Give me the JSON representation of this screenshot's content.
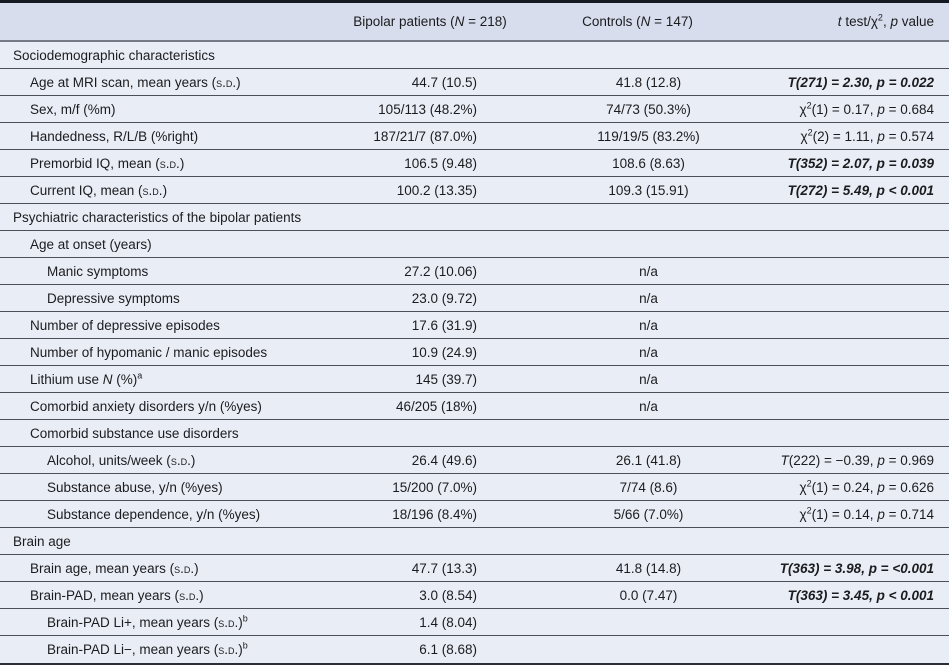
{
  "table": {
    "header": {
      "label": [],
      "bipolar": [
        {
          "t": "Bipolar patients ("
        },
        {
          "t": "N",
          "s": "i"
        },
        {
          "t": " = 218)"
        }
      ],
      "controls": [
        {
          "t": "Controls ("
        },
        {
          "t": "N",
          "s": "i"
        },
        {
          "t": " = 147)"
        }
      ],
      "stats": [
        {
          "t": "t",
          "s": "i"
        },
        {
          "t": " test/χ"
        },
        {
          "t": "2",
          "s": "sup"
        },
        {
          "t": ", "
        },
        {
          "t": "p",
          "s": "i"
        },
        {
          "t": " value"
        }
      ]
    },
    "rows": [
      {
        "ind": 0,
        "label": [
          {
            "t": "Sociodemographic characteristics"
          }
        ],
        "bipolar": "",
        "controls": "",
        "stats": [],
        "stats_bold": false
      },
      {
        "ind": 1,
        "label": [
          {
            "t": "Age at MRI scan, mean years ("
          },
          {
            "t": "s.d.",
            "s": "sc"
          },
          {
            "t": ")"
          }
        ],
        "bipolar": "44.7 (10.5)",
        "controls": "41.8 (12.8)",
        "stats": [
          {
            "t": "T(271) = 2.30, p = 0.022"
          }
        ],
        "stats_bold": true
      },
      {
        "ind": 1,
        "label": [
          {
            "t": "Sex, m/f (%m)"
          }
        ],
        "bipolar": "105/113 (48.2%)",
        "controls": "74/73 (50.3%)",
        "stats": [
          {
            "t": "χ"
          },
          {
            "t": "2",
            "s": "sup"
          },
          {
            "t": "(1) = 0.17, "
          },
          {
            "t": "p",
            "s": "i"
          },
          {
            "t": " = 0.684"
          }
        ],
        "stats_bold": false
      },
      {
        "ind": 1,
        "label": [
          {
            "t": "Handedness, R/L/B (%right)"
          }
        ],
        "bipolar": "187/21/7 (87.0%)",
        "controls": "119/19/5 (83.2%)",
        "stats": [
          {
            "t": "χ"
          },
          {
            "t": "2",
            "s": "sup"
          },
          {
            "t": "(2) = 1.11, "
          },
          {
            "t": "p",
            "s": "i"
          },
          {
            "t": " = 0.574"
          }
        ],
        "stats_bold": false
      },
      {
        "ind": 1,
        "label": [
          {
            "t": "Premorbid IQ, mean ("
          },
          {
            "t": "s.d.",
            "s": "sc"
          },
          {
            "t": ")"
          }
        ],
        "bipolar": "106.5 (9.48)",
        "controls": "108.6 (8.63)",
        "stats": [
          {
            "t": "T(352) = 2.07, p = 0.039"
          }
        ],
        "stats_bold": true
      },
      {
        "ind": 1,
        "label": [
          {
            "t": "Current IQ, mean ("
          },
          {
            "t": "s.d.",
            "s": "sc"
          },
          {
            "t": ")"
          }
        ],
        "bipolar": "100.2 (13.35)",
        "controls": "109.3 (15.91)",
        "stats": [
          {
            "t": "T(272) = 5.49, p < 0.001"
          }
        ],
        "stats_bold": true
      },
      {
        "ind": 0,
        "label": [
          {
            "t": "Psychiatric characteristics of the bipolar patients"
          }
        ],
        "bipolar": "",
        "controls": "",
        "stats": [],
        "stats_bold": false
      },
      {
        "ind": 1,
        "label": [
          {
            "t": "Age at onset (years)"
          }
        ],
        "bipolar": "",
        "controls": "",
        "stats": [],
        "stats_bold": false
      },
      {
        "ind": 2,
        "label": [
          {
            "t": "Manic symptoms"
          }
        ],
        "bipolar": "27.2 (10.06)",
        "controls": "n/a",
        "stats": [],
        "stats_bold": false
      },
      {
        "ind": 2,
        "label": [
          {
            "t": "Depressive symptoms"
          }
        ],
        "bipolar": "23.0 (9.72)",
        "controls": "n/a",
        "stats": [],
        "stats_bold": false
      },
      {
        "ind": 1,
        "label": [
          {
            "t": "Number of depressive episodes"
          }
        ],
        "bipolar": "17.6 (31.9)",
        "controls": "n/a",
        "stats": [],
        "stats_bold": false
      },
      {
        "ind": 1,
        "label": [
          {
            "t": "Number of hypomanic / manic episodes"
          }
        ],
        "bipolar": "10.9 (24.9)",
        "controls": "n/a",
        "stats": [],
        "stats_bold": false
      },
      {
        "ind": 1,
        "label": [
          {
            "t": "Lithium use "
          },
          {
            "t": "N",
            "s": "i"
          },
          {
            "t": " (%)"
          },
          {
            "t": "a",
            "s": "sup"
          }
        ],
        "bipolar": "145 (39.7)",
        "controls": "n/a",
        "stats": [],
        "stats_bold": false
      },
      {
        "ind": 1,
        "label": [
          {
            "t": "Comorbid anxiety disorders y/n (%yes)"
          }
        ],
        "bipolar": "46/205 (18%)",
        "controls": "n/a",
        "stats": [],
        "stats_bold": false
      },
      {
        "ind": 1,
        "label": [
          {
            "t": "Comorbid substance use disorders"
          }
        ],
        "bipolar": "",
        "controls": "",
        "stats": [],
        "stats_bold": false
      },
      {
        "ind": 2,
        "label": [
          {
            "t": "Alcohol, units/week ("
          },
          {
            "t": "s.d.",
            "s": "sc"
          },
          {
            "t": ")"
          }
        ],
        "bipolar": "26.4 (49.6)",
        "controls": "26.1 (41.8)",
        "stats": [
          {
            "t": "T",
            "s": "i"
          },
          {
            "t": "(222) = −0.39, "
          },
          {
            "t": "p",
            "s": "i"
          },
          {
            "t": " = 0.969"
          }
        ],
        "stats_bold": false
      },
      {
        "ind": 2,
        "label": [
          {
            "t": "Substance abuse, y/n (%yes)"
          }
        ],
        "bipolar": "15/200 (7.0%)",
        "controls": "7/74 (8.6)",
        "stats": [
          {
            "t": "χ"
          },
          {
            "t": "2",
            "s": "sup"
          },
          {
            "t": "(1) = 0.24, "
          },
          {
            "t": "p",
            "s": "i"
          },
          {
            "t": " = 0.626"
          }
        ],
        "stats_bold": false
      },
      {
        "ind": 2,
        "label": [
          {
            "t": "Substance dependence, y/n (%yes)"
          }
        ],
        "bipolar": "18/196 (8.4%)",
        "controls": "5/66 (7.0%)",
        "stats": [
          {
            "t": "χ"
          },
          {
            "t": "2",
            "s": "sup"
          },
          {
            "t": "(1) = 0.14, "
          },
          {
            "t": "p",
            "s": "i"
          },
          {
            "t": " = 0.714"
          }
        ],
        "stats_bold": false
      },
      {
        "ind": 0,
        "label": [
          {
            "t": "Brain age"
          }
        ],
        "bipolar": "",
        "controls": "",
        "stats": [],
        "stats_bold": false
      },
      {
        "ind": 1,
        "label": [
          {
            "t": "Brain age, mean years ("
          },
          {
            "t": "s.d.",
            "s": "sc"
          },
          {
            "t": ")"
          }
        ],
        "bipolar": "47.7 (13.3)",
        "controls": "41.8 (14.8)",
        "stats": [
          {
            "t": "T(363) = 3.98, p = <0.001"
          }
        ],
        "stats_bold": true
      },
      {
        "ind": 1,
        "label": [
          {
            "t": "Brain-PAD, mean years ("
          },
          {
            "t": "s.d.",
            "s": "sc"
          },
          {
            "t": ")"
          }
        ],
        "bipolar": "3.0 (8.54)",
        "controls": "0.0 (7.47)",
        "stats": [
          {
            "t": "T(363) = 3.45, p < 0.001"
          }
        ],
        "stats_bold": true
      },
      {
        "ind": 2,
        "label": [
          {
            "t": "Brain-PAD Li+, mean years ("
          },
          {
            "t": "s.d.",
            "s": "sc"
          },
          {
            "t": ")"
          },
          {
            "t": "b",
            "s": "sup"
          }
        ],
        "bipolar": "1.4 (8.04)",
        "controls": "",
        "stats": [],
        "stats_bold": false
      },
      {
        "ind": 2,
        "label": [
          {
            "t": "Brain-PAD Li−, mean years ("
          },
          {
            "t": "s.d.",
            "s": "sc"
          },
          {
            "t": ")"
          },
          {
            "t": "b",
            "s": "sup"
          }
        ],
        "bipolar": "6.1 (8.68)",
        "controls": "",
        "stats": [],
        "stats_bold": false
      }
    ]
  },
  "colors": {
    "top_border": "#151922",
    "header_bg": "#d7ddec",
    "header_rule": "#757b86",
    "row_bg": "#e9edf5",
    "row_separator": "#4c4f55",
    "bottom_border": "#2b2e34",
    "text": "#1b1c1f"
  }
}
